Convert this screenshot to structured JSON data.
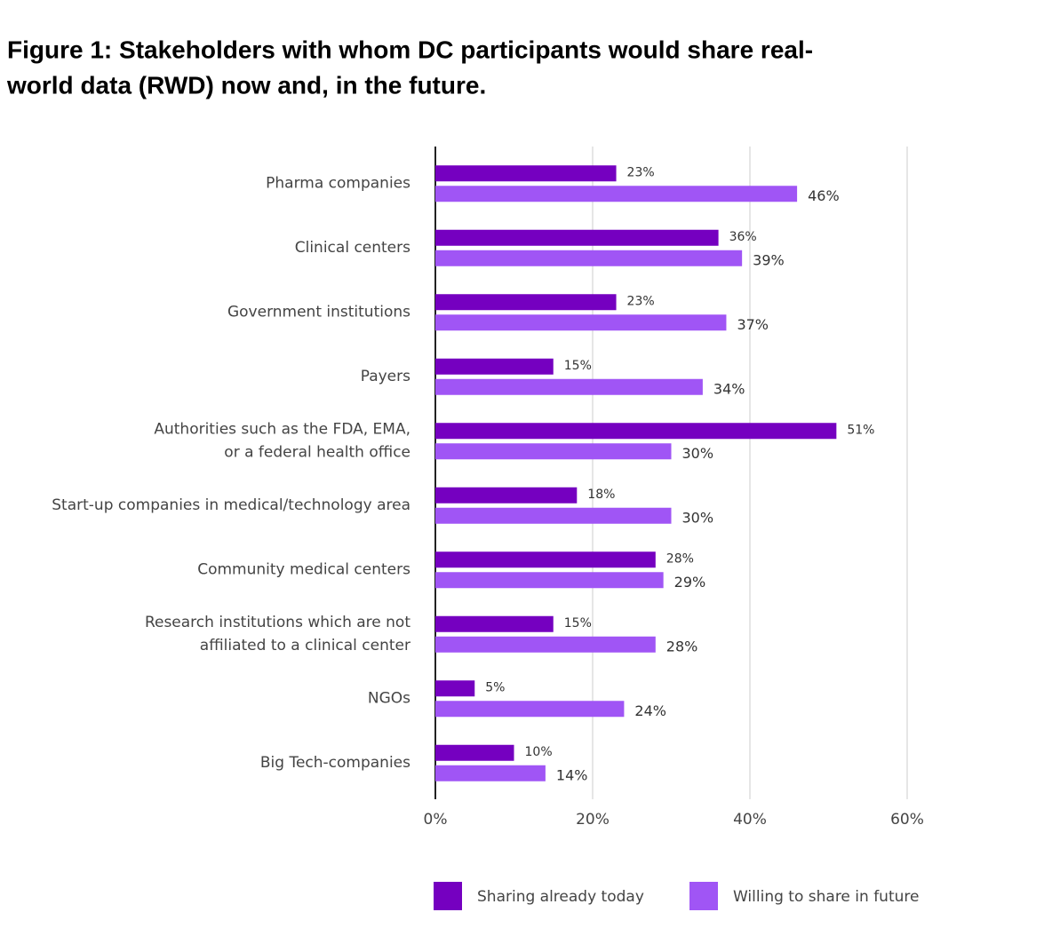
{
  "chart_data": {
    "type": "bar",
    "orientation": "horizontal",
    "title": [
      "Figure 1: Stakeholders with whom DC participants would share real-",
      "world data (RWD) now and, in the future."
    ],
    "categories": [
      [
        "Pharma companies"
      ],
      [
        "Clinical centers"
      ],
      [
        "Government institutions"
      ],
      [
        "Payers"
      ],
      [
        "Authorities such as the FDA, EMA,",
        "or a federal health office"
      ],
      [
        "Start-up companies in medical/technology area"
      ],
      [
        "Community medical centers"
      ],
      [
        "Research institutions which are not",
        "affiliated to a clinical center"
      ],
      [
        "NGOs"
      ],
      [
        "Big Tech-companies"
      ]
    ],
    "series": [
      {
        "name": "Sharing already today",
        "color": "#7500c0",
        "values": [
          23,
          36,
          23,
          15,
          51,
          18,
          28,
          15,
          5,
          10
        ],
        "value_labels": [
          "23%",
          "36%",
          "23%",
          "15%",
          "51%",
          "18%",
          "28%",
          "15%",
          "5%",
          "10%"
        ]
      },
      {
        "name": "Willing to share in future",
        "color": "#a055f5",
        "values": [
          46,
          39,
          37,
          34,
          30,
          30,
          29,
          28,
          24,
          14
        ],
        "value_labels": [
          "46%",
          "39%",
          "37%",
          "34%",
          "30%",
          "30%",
          "29%",
          "28%",
          "24%",
          "14%"
        ]
      }
    ],
    "xlim": [
      0,
      60
    ],
    "xticks": [
      {
        "value": 0,
        "label": "0%"
      },
      {
        "value": 20,
        "label": "20%"
      },
      {
        "value": 40,
        "label": "40%"
      },
      {
        "value": 60,
        "label": "60%"
      }
    ],
    "grid": true,
    "legend": "bottom"
  }
}
